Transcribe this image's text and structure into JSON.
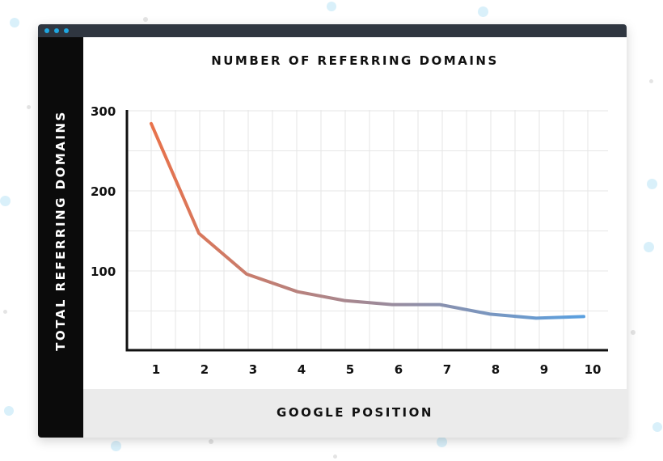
{
  "window": {
    "titlebar_color": "#2f3640",
    "dot_color": "#1ea7e1",
    "sidebar_color": "#0b0b0b",
    "footer_color": "#ebebeb"
  },
  "chart_data": {
    "type": "line",
    "title": "NUMBER OF REFERRING DOMAINS",
    "xlabel": "GOOGLE POSITION",
    "ylabel": "TOTAL REFERRING DOMAINS",
    "x": [
      1,
      2,
      3,
      4,
      5,
      6,
      7,
      8,
      9,
      10
    ],
    "x_tick_labels": [
      "1",
      "2",
      "3",
      "4",
      "5",
      "6",
      "7",
      "8",
      "9",
      "10"
    ],
    "y_ticks": [
      100,
      200,
      300
    ],
    "y_tick_labels": [
      "100",
      "200",
      "300"
    ],
    "ylim": [
      0,
      300
    ],
    "grid": true,
    "series": [
      {
        "values": [
          283,
          146,
          95,
          73,
          62,
          57,
          57,
          45,
          40,
          42
        ],
        "gradient_start": "#e8724b",
        "gradient_end": "#5aa0e0"
      }
    ]
  }
}
